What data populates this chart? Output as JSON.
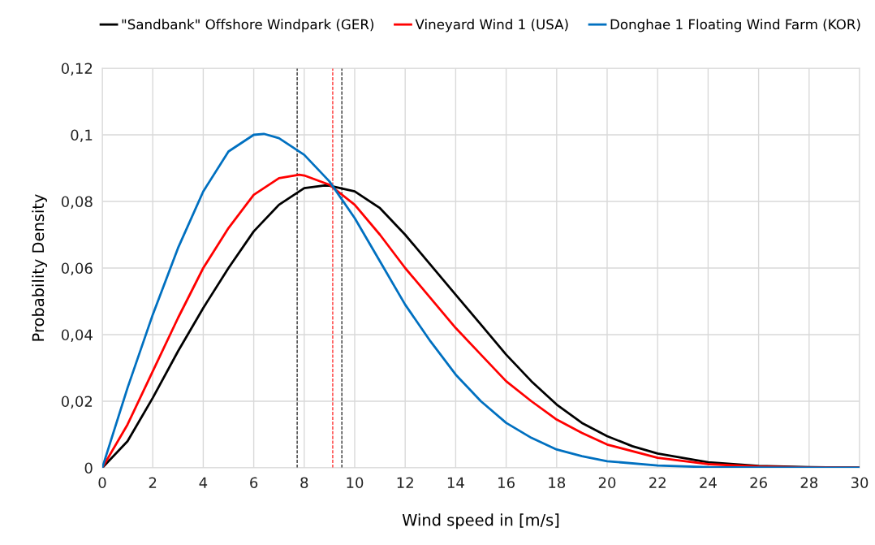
{
  "chart_data": {
    "type": "line",
    "xlabel": "Wind speed in [m/s]",
    "ylabel": "Probability Density",
    "xlim": [
      0,
      30
    ],
    "xticks": [
      0,
      2,
      4,
      6,
      8,
      10,
      12,
      14,
      16,
      18,
      20,
      22,
      24,
      26,
      28,
      30
    ],
    "ylim": [
      0,
      0.12
    ],
    "yticks": [
      {
        "value": 0,
        "label": "0"
      },
      {
        "value": 0.02,
        "label": "0,02"
      },
      {
        "value": 0.04,
        "label": "0,04"
      },
      {
        "value": 0.06,
        "label": "0,06"
      },
      {
        "value": 0.08,
        "label": "0,08"
      },
      {
        "value": 0.1,
        "label": "0,1"
      },
      {
        "value": 0.12,
        "label": "0,12"
      }
    ],
    "grid": true,
    "legend": "top",
    "marker": "none",
    "line_style": "solid",
    "series": [
      {
        "name": "\"Sandbank\" Offshore Windpark (GER)",
        "color": "#000000",
        "x": [
          0,
          1,
          2,
          3,
          4,
          5,
          6,
          7,
          8,
          8.8,
          9,
          10,
          11,
          12,
          13,
          14,
          15,
          16,
          17,
          18,
          19,
          20,
          21,
          22,
          24,
          26,
          28,
          30
        ],
        "values": [
          0,
          0.008,
          0.021,
          0.035,
          0.048,
          0.06,
          0.071,
          0.079,
          0.084,
          0.0848,
          0.0847,
          0.083,
          0.078,
          0.07,
          0.061,
          0.052,
          0.043,
          0.034,
          0.026,
          0.019,
          0.0135,
          0.0095,
          0.0065,
          0.0043,
          0.0017,
          0.0006,
          0.0002,
          0.0001
        ]
      },
      {
        "name": "Vineyard Wind 1 (USA)",
        "color": "#ff0000",
        "x": [
          0,
          1,
          2,
          3,
          4,
          5,
          6,
          7,
          7.8,
          8,
          9,
          10,
          11,
          12,
          13,
          14,
          15,
          16,
          17,
          18,
          19,
          20,
          22,
          24,
          26,
          28,
          30
        ],
        "values": [
          0,
          0.013,
          0.029,
          0.045,
          0.06,
          0.072,
          0.082,
          0.087,
          0.088,
          0.0878,
          0.085,
          0.079,
          0.07,
          0.06,
          0.051,
          0.042,
          0.034,
          0.026,
          0.02,
          0.0145,
          0.0105,
          0.007,
          0.003,
          0.0011,
          0.0004,
          0.0001,
          0
        ]
      },
      {
        "name": "Donghae 1 Floating Wind Farm (KOR)",
        "color": "#0070c0",
        "x": [
          0,
          1,
          2,
          3,
          4,
          5,
          6,
          6.4,
          7,
          8,
          9,
          10,
          11,
          12,
          13,
          14,
          15,
          16,
          17,
          18,
          19,
          20,
          22,
          24,
          26,
          30
        ],
        "values": [
          0,
          0.024,
          0.046,
          0.066,
          0.083,
          0.095,
          0.1,
          0.1003,
          0.099,
          0.094,
          0.086,
          0.075,
          0.062,
          0.049,
          0.038,
          0.028,
          0.02,
          0.0135,
          0.009,
          0.0055,
          0.0035,
          0.002,
          0.0007,
          0.0002,
          0.0001,
          0
        ]
      }
    ],
    "ref_lines": [
      {
        "axis": "x",
        "value": 7.72,
        "color": "#000000",
        "line_style": "dashed"
      },
      {
        "axis": "x",
        "value": 9.13,
        "color": "#ff0000",
        "line_style": "dashed"
      },
      {
        "axis": "x",
        "value": 9.49,
        "color": "#000000",
        "line_style": "dashed"
      }
    ]
  }
}
